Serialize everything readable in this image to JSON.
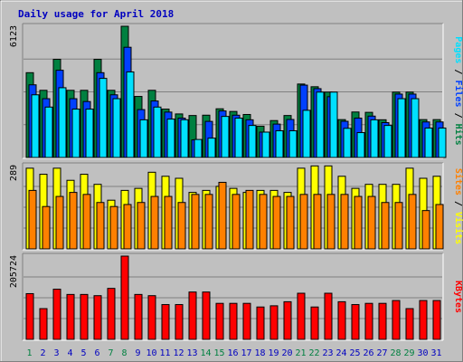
{
  "title": "Daily usage for April 2018",
  "colors": {
    "background": "#c0c0c0",
    "title": "#0000c0",
    "hits": "#008040",
    "files": "#0040ff",
    "pages": "#00e0ff",
    "visits": "#ffff00",
    "sites": "#ff8000",
    "kbytes": "#ff0000",
    "weekend_day_label": "#008040",
    "weekday_label": "#0000c0"
  },
  "chart_data": [
    {
      "type": "bar",
      "panel": "hits-files-pages",
      "ymax_label": "6123",
      "ylim": [
        0,
        6123
      ],
      "right_labels": [
        "Pages",
        "Files",
        "Hits"
      ],
      "right_separator": "/",
      "categories": [
        "1",
        "2",
        "3",
        "4",
        "5",
        "6",
        "7",
        "8",
        "9",
        "10",
        "11",
        "12",
        "13",
        "14",
        "15",
        "16",
        "17",
        "18",
        "19",
        "20",
        "21",
        "22",
        "23",
        "24",
        "25",
        "26",
        "27",
        "28",
        "29",
        "30",
        "31"
      ],
      "series": [
        {
          "name": "Hits",
          "color_key": "hits",
          "values": [
            3956,
            3134,
            4581,
            3134,
            3134,
            4580,
            3134,
            6123,
            2848,
            3134,
            2257,
            2031,
            1958,
            1973,
            2272,
            2147,
            2006,
            1460,
            1722,
            1958,
            3427,
            3301,
            3051,
            1767,
            2122,
            2106,
            1760,
            3051,
            3051,
            1767,
            1767
          ]
        },
        {
          "name": "Files",
          "color_key": "files",
          "values": [
            3390,
            2743,
            4070,
            2743,
            2610,
            3956,
            2924,
            5143,
            2234,
            2636,
            2117,
            1836,
            820,
            1684,
            2172,
            1973,
            1759,
            1183,
            1558,
            1773,
            3376,
            3212,
            2836,
            1688,
            1836,
            1930,
            1626,
            2958,
            2958,
            1658,
            1658
          ]
        },
        {
          "name": "Pages",
          "color_key": "pages",
          "values": [
            2924,
            2352,
            3255,
            2257,
            2257,
            3690,
            2743,
            3992,
            1758,
            2352,
            1791,
            1760,
            840,
            902,
            1916,
            1836,
            1494,
            1183,
            1246,
            1246,
            2201,
            3051,
            3051,
            1360,
            1160,
            1758,
            1494,
            2743,
            2743,
            1374,
            1374
          ]
        }
      ]
    },
    {
      "type": "bar",
      "panel": "visits-sites",
      "ymax_label": "289",
      "ylim": [
        0,
        289
      ],
      "right_labels": [
        "Sites",
        "Visits"
      ],
      "right_separator": "/",
      "categories": [
        "1",
        "2",
        "3",
        "4",
        "5",
        "6",
        "7",
        "8",
        "9",
        "10",
        "11",
        "12",
        "13",
        "14",
        "15",
        "16",
        "17",
        "18",
        "19",
        "20",
        "21",
        "22",
        "23",
        "24",
        "25",
        "26",
        "27",
        "28",
        "29",
        "30",
        "31"
      ],
      "series": [
        {
          "name": "Visits",
          "color_key": "visits",
          "values": [
            280,
            259,
            280,
            238,
            259,
            224,
            169,
            203,
            210,
            266,
            252,
            245,
            196,
            203,
            217,
            210,
            196,
            203,
            203,
            196,
            280,
            288,
            288,
            252,
            210,
            224,
            224,
            224,
            280,
            245,
            252
          ]
        },
        {
          "name": "Sites",
          "color_key": "sites",
          "values": [
            203,
            147,
            182,
            196,
            189,
            161,
            147,
            154,
            161,
            182,
            182,
            161,
            189,
            189,
            231,
            189,
            203,
            189,
            182,
            182,
            189,
            189,
            189,
            189,
            182,
            182,
            161,
            161,
            189,
            133,
            154
          ]
        }
      ]
    },
    {
      "type": "bar",
      "panel": "kbytes",
      "ymax_label": "205724",
      "ylim": [
        0,
        205724
      ],
      "right_labels": [
        "KBytes"
      ],
      "right_separator": "/",
      "categories": [
        "1",
        "2",
        "3",
        "4",
        "5",
        "6",
        "7",
        "8",
        "9",
        "10",
        "11",
        "12",
        "13",
        "14",
        "15",
        "16",
        "17",
        "18",
        "19",
        "20",
        "21",
        "22",
        "23",
        "24",
        "25",
        "26",
        "27",
        "28",
        "29",
        "30",
        "31"
      ],
      "series": [
        {
          "name": "KBytes",
          "color_key": "kbytes",
          "values": [
            113000,
            76000,
            124000,
            111000,
            111000,
            108000,
            126000,
            205724,
            111000,
            108000,
            86000,
            86000,
            117000,
            117000,
            89000,
            89000,
            89000,
            80000,
            83000,
            93000,
            114000,
            80000,
            114000,
            93000,
            86000,
            89000,
            89000,
            96000,
            76000,
            96000,
            96000
          ]
        }
      ]
    }
  ],
  "x_axis": {
    "days": [
      "1",
      "2",
      "3",
      "4",
      "5",
      "6",
      "7",
      "8",
      "9",
      "10",
      "11",
      "12",
      "13",
      "14",
      "15",
      "16",
      "17",
      "18",
      "19",
      "20",
      "21",
      "22",
      "23",
      "24",
      "25",
      "26",
      "27",
      "28",
      "29",
      "30",
      "31"
    ],
    "weekend_days": [
      "1",
      "7",
      "8",
      "14",
      "15",
      "21",
      "22",
      "28",
      "29"
    ]
  }
}
